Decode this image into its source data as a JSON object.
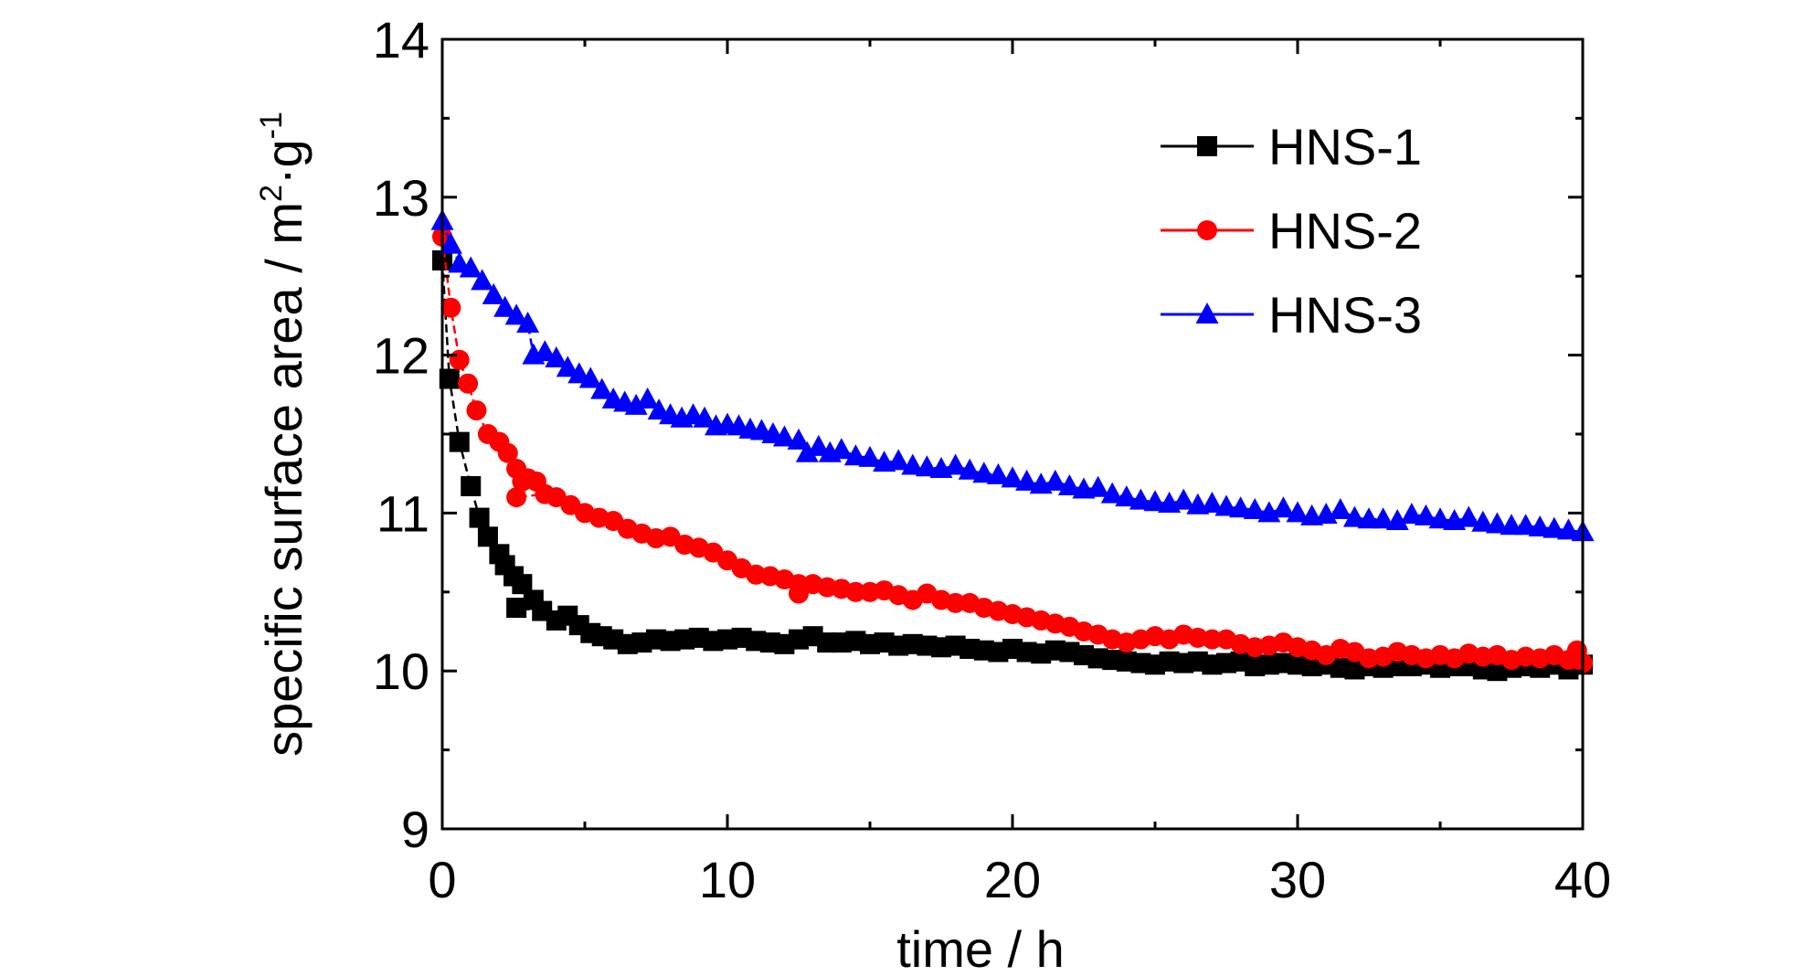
{
  "chart_data": {
    "type": "line",
    "title": "",
    "xlabel": "time / h",
    "ylabel": "specific surface area / m²·g⁻¹",
    "ylabel_parts": {
      "main": "specific surface area / m",
      "sup1": "2",
      "mid": "·g",
      "sup2": "-1"
    },
    "xlim": [
      0,
      40
    ],
    "ylim": [
      9,
      14
    ],
    "x_ticks": [
      0,
      10,
      20,
      30,
      40
    ],
    "y_ticks": [
      9,
      10,
      11,
      12,
      13,
      14
    ],
    "x_tick_labels": [
      "0",
      "10",
      "20",
      "30",
      "40"
    ],
    "y_tick_labels": [
      "9",
      "10",
      "11",
      "12",
      "13",
      "14"
    ],
    "grid": false,
    "legend_position": "top-right",
    "series": [
      {
        "name": "HNS-1",
        "color": "#000000",
        "marker": "square",
        "points": [
          [
            0,
            12.6
          ],
          [
            0.25,
            11.85
          ],
          [
            0.6,
            11.45
          ],
          [
            1.0,
            11.17
          ],
          [
            1.3,
            10.97
          ],
          [
            1.6,
            10.85
          ],
          [
            2.0,
            10.74
          ],
          [
            2.2,
            10.67
          ],
          [
            2.5,
            10.6
          ],
          [
            2.8,
            10.55
          ],
          [
            3.2,
            10.45
          ],
          [
            2.6,
            10.4
          ],
          [
            3.5,
            10.38
          ],
          [
            4.0,
            10.32
          ],
          [
            4.4,
            10.35
          ],
          [
            4.8,
            10.29
          ],
          [
            5.2,
            10.24
          ],
          [
            5.6,
            10.22
          ],
          [
            6.0,
            10.2
          ],
          [
            6.5,
            10.17
          ],
          [
            7.0,
            10.18
          ],
          [
            7.5,
            10.2
          ],
          [
            8.0,
            10.19
          ],
          [
            8.5,
            10.2
          ],
          [
            9.0,
            10.21
          ],
          [
            9.5,
            10.19
          ],
          [
            10.0,
            10.2
          ],
          [
            10.5,
            10.21
          ],
          [
            11.0,
            10.19
          ],
          [
            11.5,
            10.18
          ],
          [
            12.0,
            10.17
          ],
          [
            12.5,
            10.2
          ],
          [
            13.0,
            10.22
          ],
          [
            13.5,
            10.18
          ],
          [
            14.0,
            10.18
          ],
          [
            14.5,
            10.19
          ],
          [
            15.0,
            10.17
          ],
          [
            15.5,
            10.18
          ],
          [
            16.0,
            10.16
          ],
          [
            16.5,
            10.17
          ],
          [
            17.0,
            10.16
          ],
          [
            17.5,
            10.15
          ],
          [
            18.0,
            10.16
          ],
          [
            18.5,
            10.14
          ],
          [
            19.0,
            10.13
          ],
          [
            19.5,
            10.12
          ],
          [
            20.0,
            10.14
          ],
          [
            20.5,
            10.12
          ],
          [
            21.0,
            10.11
          ],
          [
            21.5,
            10.13
          ],
          [
            22.0,
            10.12
          ],
          [
            22.5,
            10.1
          ],
          [
            23.0,
            10.08
          ],
          [
            23.5,
            10.07
          ],
          [
            24.0,
            10.06
          ],
          [
            24.5,
            10.05
          ],
          [
            25.0,
            10.04
          ],
          [
            25.5,
            10.06
          ],
          [
            26.0,
            10.05
          ],
          [
            26.5,
            10.06
          ],
          [
            27.0,
            10.04
          ],
          [
            27.5,
            10.05
          ],
          [
            28.0,
            10.06
          ],
          [
            28.5,
            10.03
          ],
          [
            29.0,
            10.04
          ],
          [
            29.5,
            10.05
          ],
          [
            30.0,
            10.04
          ],
          [
            30.5,
            10.03
          ],
          [
            31.0,
            10.04
          ],
          [
            31.5,
            10.02
          ],
          [
            32.0,
            10.01
          ],
          [
            32.5,
            10.03
          ],
          [
            33.0,
            10.02
          ],
          [
            33.5,
            10.03
          ],
          [
            34.0,
            10.03
          ],
          [
            34.5,
            10.04
          ],
          [
            35.0,
            10.02
          ],
          [
            35.5,
            10.03
          ],
          [
            36.0,
            10.03
          ],
          [
            36.5,
            10.01
          ],
          [
            37.0,
            10.0
          ],
          [
            37.5,
            10.02
          ],
          [
            38.0,
            10.03
          ],
          [
            38.5,
            10.02
          ],
          [
            39.0,
            10.04
          ],
          [
            39.5,
            10.01
          ],
          [
            40.0,
            10.04
          ]
        ]
      },
      {
        "name": "HNS-2",
        "color": "#ff0000",
        "marker": "circle",
        "points": [
          [
            0,
            12.75
          ],
          [
            0.3,
            12.3
          ],
          [
            0.6,
            11.97
          ],
          [
            0.9,
            11.82
          ],
          [
            1.2,
            11.65
          ],
          [
            1.6,
            11.5
          ],
          [
            2.0,
            11.45
          ],
          [
            2.3,
            11.38
          ],
          [
            2.6,
            11.28
          ],
          [
            2.8,
            11.2
          ],
          [
            3.0,
            11.22
          ],
          [
            3.3,
            11.2
          ],
          [
            2.6,
            11.1
          ],
          [
            3.6,
            11.12
          ],
          [
            4.0,
            11.1
          ],
          [
            4.5,
            11.05
          ],
          [
            5.0,
            11.0
          ],
          [
            5.5,
            10.97
          ],
          [
            6.0,
            10.95
          ],
          [
            6.5,
            10.9
          ],
          [
            7.0,
            10.87
          ],
          [
            7.5,
            10.84
          ],
          [
            8.0,
            10.85
          ],
          [
            8.5,
            10.8
          ],
          [
            9.0,
            10.78
          ],
          [
            9.5,
            10.75
          ],
          [
            10.0,
            10.7
          ],
          [
            10.5,
            10.65
          ],
          [
            11.0,
            10.61
          ],
          [
            11.5,
            10.6
          ],
          [
            12.0,
            10.58
          ],
          [
            12.5,
            10.55
          ],
          [
            12.5,
            10.49
          ],
          [
            13.0,
            10.55
          ],
          [
            13.5,
            10.53
          ],
          [
            14.0,
            10.52
          ],
          [
            14.5,
            10.5
          ],
          [
            15.0,
            10.5
          ],
          [
            15.5,
            10.51
          ],
          [
            16.0,
            10.48
          ],
          [
            16.5,
            10.45
          ],
          [
            17.0,
            10.49
          ],
          [
            17.5,
            10.45
          ],
          [
            18.0,
            10.43
          ],
          [
            18.5,
            10.43
          ],
          [
            19.0,
            10.4
          ],
          [
            19.5,
            10.38
          ],
          [
            20.0,
            10.36
          ],
          [
            20.5,
            10.34
          ],
          [
            21.0,
            10.32
          ],
          [
            21.5,
            10.3
          ],
          [
            22.0,
            10.28
          ],
          [
            22.5,
            10.25
          ],
          [
            23.0,
            10.23
          ],
          [
            23.5,
            10.2
          ],
          [
            24.0,
            10.18
          ],
          [
            24.5,
            10.2
          ],
          [
            25.0,
            10.22
          ],
          [
            25.5,
            10.2
          ],
          [
            26.0,
            10.23
          ],
          [
            26.5,
            10.21
          ],
          [
            27.0,
            10.2
          ],
          [
            27.5,
            10.2
          ],
          [
            28.0,
            10.17
          ],
          [
            28.5,
            10.15
          ],
          [
            29.0,
            10.16
          ],
          [
            29.5,
            10.18
          ],
          [
            30.0,
            10.15
          ],
          [
            30.5,
            10.13
          ],
          [
            31.0,
            10.1
          ],
          [
            31.5,
            10.14
          ],
          [
            32.0,
            10.12
          ],
          [
            32.5,
            10.08
          ],
          [
            33.0,
            10.09
          ],
          [
            33.5,
            10.12
          ],
          [
            34.0,
            10.1
          ],
          [
            34.5,
            10.08
          ],
          [
            35.0,
            10.1
          ],
          [
            35.5,
            10.08
          ],
          [
            36.0,
            10.11
          ],
          [
            36.5,
            10.09
          ],
          [
            37.0,
            10.1
          ],
          [
            37.5,
            10.07
          ],
          [
            38.0,
            10.09
          ],
          [
            38.5,
            10.08
          ],
          [
            39.0,
            10.1
          ],
          [
            39.5,
            10.07
          ],
          [
            39.8,
            10.13
          ],
          [
            40.0,
            10.05
          ]
        ]
      },
      {
        "name": "HNS-3",
        "color": "#0000ff",
        "marker": "triangle",
        "points": [
          [
            0,
            12.85
          ],
          [
            0.3,
            12.7
          ],
          [
            0.6,
            12.58
          ],
          [
            1.0,
            12.55
          ],
          [
            1.4,
            12.47
          ],
          [
            1.8,
            12.38
          ],
          [
            2.2,
            12.3
          ],
          [
            2.6,
            12.25
          ],
          [
            3.0,
            12.2
          ],
          [
            3.2,
            12.0
          ],
          [
            3.6,
            12.02
          ],
          [
            4.0,
            11.98
          ],
          [
            4.4,
            11.92
          ],
          [
            4.8,
            11.88
          ],
          [
            5.2,
            11.85
          ],
          [
            5.6,
            11.78
          ],
          [
            6.0,
            11.72
          ],
          [
            6.4,
            11.7
          ],
          [
            6.8,
            11.68
          ],
          [
            7.2,
            11.72
          ],
          [
            7.6,
            11.65
          ],
          [
            8.0,
            11.62
          ],
          [
            8.4,
            11.6
          ],
          [
            8.8,
            11.62
          ],
          [
            9.2,
            11.6
          ],
          [
            9.6,
            11.55
          ],
          [
            10.0,
            11.56
          ],
          [
            10.4,
            11.55
          ],
          [
            10.8,
            11.53
          ],
          [
            11.2,
            11.52
          ],
          [
            11.6,
            11.5
          ],
          [
            12.0,
            11.48
          ],
          [
            12.5,
            11.46
          ],
          [
            12.8,
            11.38
          ],
          [
            13.2,
            11.42
          ],
          [
            13.6,
            11.38
          ],
          [
            14.0,
            11.4
          ],
          [
            14.5,
            11.36
          ],
          [
            15.0,
            11.35
          ],
          [
            15.5,
            11.32
          ],
          [
            16.0,
            11.33
          ],
          [
            16.5,
            11.3
          ],
          [
            17.0,
            11.29
          ],
          [
            17.5,
            11.28
          ],
          [
            18.0,
            11.3
          ],
          [
            18.5,
            11.27
          ],
          [
            19.0,
            11.25
          ],
          [
            19.5,
            11.24
          ],
          [
            20.0,
            11.22
          ],
          [
            20.5,
            11.2
          ],
          [
            21.0,
            11.18
          ],
          [
            21.5,
            11.2
          ],
          [
            22.0,
            11.17
          ],
          [
            22.5,
            11.15
          ],
          [
            23.0,
            11.16
          ],
          [
            23.5,
            11.12
          ],
          [
            24.0,
            11.1
          ],
          [
            24.5,
            11.08
          ],
          [
            25.0,
            11.07
          ],
          [
            25.5,
            11.06
          ],
          [
            26.0,
            11.08
          ],
          [
            26.5,
            11.05
          ],
          [
            27.0,
            11.06
          ],
          [
            27.5,
            11.04
          ],
          [
            28.0,
            11.03
          ],
          [
            28.5,
            11.02
          ],
          [
            29.0,
            11.0
          ],
          [
            29.5,
            11.03
          ],
          [
            30.0,
            11.0
          ],
          [
            30.5,
            10.98
          ],
          [
            31.0,
            10.99
          ],
          [
            31.5,
            11.02
          ],
          [
            32.0,
            10.97
          ],
          [
            32.5,
            10.96
          ],
          [
            33.0,
            10.96
          ],
          [
            33.5,
            10.95
          ],
          [
            34.0,
            10.99
          ],
          [
            34.5,
            10.98
          ],
          [
            35.0,
            10.96
          ],
          [
            35.5,
            10.95
          ],
          [
            36.0,
            10.97
          ],
          [
            36.5,
            10.94
          ],
          [
            37.0,
            10.93
          ],
          [
            37.5,
            10.92
          ],
          [
            38.0,
            10.92
          ],
          [
            38.5,
            10.91
          ],
          [
            39.0,
            10.9
          ],
          [
            39.5,
            10.89
          ],
          [
            40.0,
            10.88
          ]
        ]
      }
    ]
  }
}
